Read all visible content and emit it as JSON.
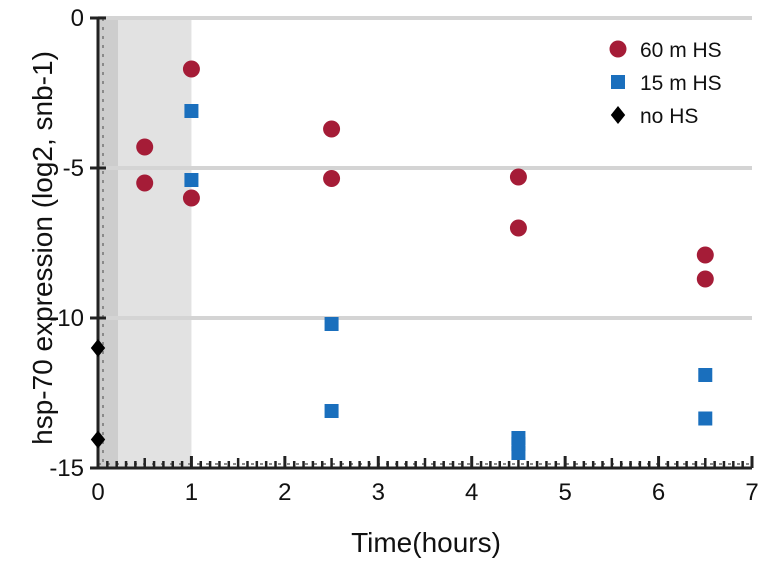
{
  "chart_data": {
    "type": "scatter",
    "title": "",
    "xlabel": "Time(hours)",
    "ylabel": "hsp-70 expression (log2, snb-1)",
    "xlim": [
      0,
      7
    ],
    "ylim": [
      -15,
      0
    ],
    "x_ticks": [
      "0",
      "1",
      "2",
      "3",
      "4",
      "5",
      "6",
      "7"
    ],
    "y_ticks": [
      "0",
      "-5",
      "-10",
      "-15"
    ],
    "shaded_region": {
      "x_start": 0,
      "x_end": 1,
      "color": "#e2e2e2"
    },
    "grid": {
      "horizontal": true,
      "lines_at": [
        0,
        -5,
        -10
      ],
      "color": "#d4d4d4"
    },
    "legend_position": "top-right",
    "series": [
      {
        "name": "60 m HS",
        "marker": "circle",
        "color": "#a51c37",
        "points": [
          [
            0.5,
            -4.3
          ],
          [
            0.5,
            -5.5
          ],
          [
            1.0,
            -1.7
          ],
          [
            1.0,
            -6.0
          ],
          [
            2.5,
            -3.7
          ],
          [
            2.5,
            -5.35
          ],
          [
            4.5,
            -5.3
          ],
          [
            4.5,
            -7.0
          ],
          [
            6.5,
            -7.9
          ],
          [
            6.5,
            -8.7
          ]
        ]
      },
      {
        "name": "15 m HS",
        "marker": "square",
        "color": "#1a6fbd",
        "points": [
          [
            1.0,
            -3.1
          ],
          [
            1.0,
            -5.4
          ],
          [
            2.5,
            -10.2
          ],
          [
            2.5,
            -13.1
          ],
          [
            4.5,
            -14.0
          ],
          [
            4.5,
            -14.2
          ],
          [
            4.5,
            -14.5
          ],
          [
            6.5,
            -11.9
          ],
          [
            6.5,
            -13.35
          ]
        ]
      },
      {
        "name": "no HS",
        "marker": "diamond",
        "color": "#000000",
        "points": [
          [
            0.0,
            -11.0
          ],
          [
            0.0,
            -14.05
          ]
        ]
      }
    ]
  }
}
